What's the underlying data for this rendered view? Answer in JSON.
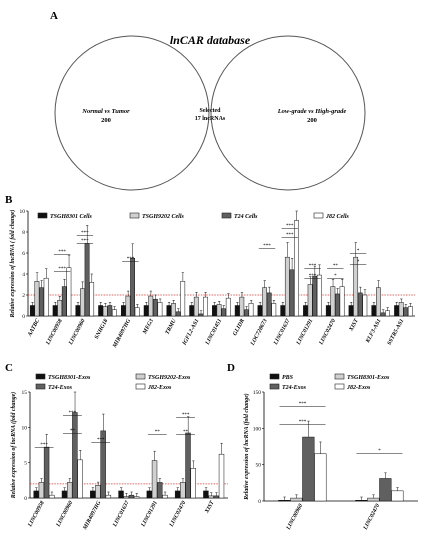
{
  "panel_labels": {
    "a": "A",
    "b": "B",
    "c": "C",
    "d": "D"
  },
  "venn": {
    "title": "lnCAR database",
    "left_label": "Normal vs Tumor",
    "left_count": "200",
    "right_label": "Low-grade vs High-grade",
    "right_count": "200",
    "center_line1": "Selected",
    "center_line2": "17 lncRNAs",
    "colors": {
      "intersection": "#f5b800",
      "stroke": "#555555"
    }
  },
  "chart_data": [
    {
      "panel": "B",
      "type": "bar",
      "ylabel": "Relative expression of lncRNA ( fold change)",
      "ylim": [
        0,
        10
      ],
      "yticks": [
        "0",
        "2",
        "4",
        "6",
        "8",
        "10"
      ],
      "reference_line": 2,
      "categories": [
        "AATBC",
        "LINC00958",
        "LINC00960",
        "SNHG18",
        "MIR4097HG",
        "MEG3",
        "TRMU",
        "IGFL2-AS1",
        "LINC01451",
        "GLIDR",
        "LOC728673",
        "LINC01637",
        "LINC01291",
        "LINC02470",
        "XIST",
        "KLF3-AS1",
        "SSTR5-AS1"
      ],
      "series": [
        {
          "name": "TSGH8301 Cells",
          "color": "#111111",
          "values": [
            1,
            1,
            1,
            1,
            1,
            1,
            1,
            1,
            1,
            1,
            1,
            1,
            1,
            1,
            1,
            1,
            1
          ]
        },
        {
          "name": "TSGH9202 Cells",
          "color": "#d0d0d0",
          "values": [
            3.3,
            1.5,
            2.6,
            0.9,
            1.9,
            1.9,
            1.2,
            1.8,
            1.1,
            1.8,
            2.7,
            5.6,
            3.0,
            2.8,
            5.6,
            2.7,
            1.3
          ]
        },
        {
          "name": "T24 Cells",
          "color": "#606060",
          "values": [
            2.7,
            2.8,
            6.9,
            1.0,
            5.5,
            1.6,
            0.4,
            0.2,
            0.7,
            0.6,
            2.2,
            4.4,
            3.8,
            2.1,
            2.2,
            0.3,
            0.8
          ]
        },
        {
          "name": "J82 Cells",
          "color": "#ffffff",
          "values": [
            3.6,
            4.6,
            3.2,
            0.6,
            0.8,
            1.3,
            3.3,
            1.8,
            1.7,
            1.2,
            1.2,
            9.1,
            3.9,
            2.8,
            2.0,
            0.5,
            0.9
          ]
        }
      ],
      "significance": [
        "***",
        "***",
        "***",
        "***",
        "***",
        "***",
        "***",
        "***",
        "***",
        "***",
        "**",
        "*",
        "*",
        "*"
      ]
    },
    {
      "panel": "C",
      "type": "bar",
      "ylabel": "Relative expression of lncRNA (fold change)",
      "ylim": [
        0,
        15
      ],
      "yticks": [
        "0",
        "5",
        "10",
        "15"
      ],
      "reference_line": 2,
      "categories": [
        "LINC00958",
        "LINC00960",
        "MIR4097HG",
        "LINC01637",
        "LINC01291",
        "LINC02470",
        "XIST"
      ],
      "series": [
        {
          "name": "TSGH8301-Exos",
          "color": "#111111",
          "values": [
            1,
            1,
            1,
            1,
            1,
            1,
            1
          ]
        },
        {
          "name": "TSGH9202-Exos",
          "color": "#d0d0d0",
          "values": [
            2.2,
            2.2,
            1.8,
            0.2,
            5.3,
            2.2,
            0.3
          ]
        },
        {
          "name": "T24-Exos",
          "color": "#606060",
          "values": [
            7.2,
            12.1,
            9.5,
            0.4,
            2.2,
            9.2,
            0.3
          ]
        },
        {
          "name": "J82-Exos",
          "color": "#ffffff",
          "values": [
            0.4,
            5.4,
            0.4,
            0.2,
            0.4,
            4.2,
            6.2
          ]
        }
      ],
      "significance": [
        "***",
        "***",
        "**",
        "***",
        "**",
        "***",
        "**"
      ]
    },
    {
      "panel": "D",
      "type": "bar",
      "ylabel": "Relative expression of lncRNA (fold change)",
      "ylim": [
        0,
        150
      ],
      "yticks": [
        "0",
        "50",
        "100",
        "150"
      ],
      "categories": [
        "LINC00960",
        "LINC02470"
      ],
      "series": [
        {
          "name": "PBS",
          "color": "#111111",
          "values": [
            1,
            1
          ]
        },
        {
          "name": "TSGH8301-Exos",
          "color": "#d0d0d0",
          "values": [
            4,
            4
          ]
        },
        {
          "name": "T24-Exos",
          "color": "#606060",
          "values": [
            88,
            31
          ]
        },
        {
          "name": "J82-Exos",
          "color": "#ffffff",
          "values": [
            65,
            14
          ]
        }
      ],
      "significance": [
        "***",
        "***",
        "*"
      ]
    }
  ]
}
